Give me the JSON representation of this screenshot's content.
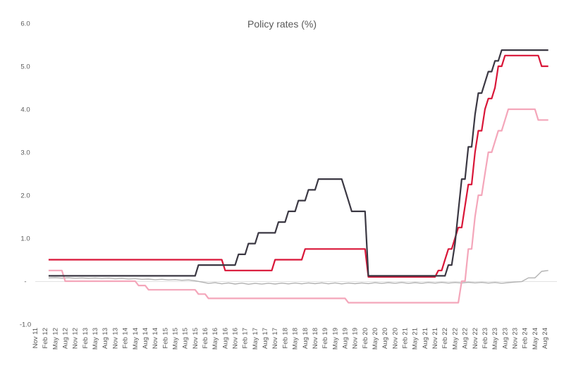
{
  "chart_data": {
    "type": "line",
    "title": "Policy rates (%)",
    "legend": "none",
    "grid": "zero-line-only",
    "background_color": "#ffffff",
    "axis_text_color": "#595959",
    "zero_line_color": "#e3e3e3",
    "x_axis": {
      "unit": "months since Nov 2011",
      "start_label": "Nov 11",
      "end_label": "Aug 24",
      "months_total": 154,
      "tick_every_months": 3,
      "tick_labels": [
        "Nov 11",
        "Feb 12",
        "May 12",
        "Aug 12",
        "Nov 12",
        "Feb 13",
        "May 13",
        "Aug 13",
        "Nov 13",
        "Feb 14",
        "May 14",
        "Aug 14",
        "Nov 14",
        "Feb 15",
        "May 15",
        "Aug 15",
        "Nov 15",
        "Feb 16",
        "May 16",
        "Aug 16",
        "Nov 16",
        "Feb 17",
        "May 17",
        "Aug 17",
        "Nov 17",
        "Feb 18",
        "May 18",
        "Aug 18",
        "Nov 18",
        "Feb 19",
        "May 19",
        "Aug 19",
        "Nov 19",
        "Feb 20",
        "May 20",
        "Aug 20",
        "Nov 20",
        "Feb 21",
        "May 21",
        "Aug 21",
        "Nov 21",
        "Feb 22",
        "May 22",
        "Aug 22",
        "Nov 22",
        "Feb 23",
        "May 23",
        "Aug 23",
        "Nov 23",
        "Feb 24",
        "May 24",
        "Aug 24"
      ]
    },
    "y_axis": {
      "min": -1.0,
      "max": 6.0,
      "tick_interval": 1.0,
      "ticks": [
        {
          "value": 6,
          "label": "6.0"
        },
        {
          "value": 5,
          "label": "5.0"
        },
        {
          "value": 4,
          "label": "4.0"
        },
        {
          "value": 3,
          "label": "3.0"
        },
        {
          "value": 2,
          "label": "2.0"
        },
        {
          "value": 1,
          "label": "1.0"
        },
        {
          "value": 0,
          "label": "-"
        },
        {
          "value": -1,
          "label": "-1.0"
        }
      ]
    },
    "series": [
      {
        "id": "gray-line",
        "color": "#b2b2b2",
        "stroke_width": 1.4,
        "interpolation": "linear",
        "end_month": 154,
        "points": [
          [
            4,
            0.075
          ],
          [
            6,
            0.08
          ],
          [
            8,
            0.07
          ],
          [
            10,
            0.078
          ],
          [
            12,
            0.068
          ],
          [
            14,
            0.075
          ],
          [
            16,
            0.065
          ],
          [
            18,
            0.072
          ],
          [
            20,
            0.062
          ],
          [
            22,
            0.07
          ],
          [
            24,
            0.058
          ],
          [
            26,
            0.065
          ],
          [
            28,
            0.052
          ],
          [
            30,
            0.06
          ],
          [
            32,
            0.045
          ],
          [
            34,
            0.05
          ],
          [
            36,
            0.035
          ],
          [
            38,
            0.045
          ],
          [
            40,
            0.03
          ],
          [
            42,
            0.038
          ],
          [
            44,
            0.022
          ],
          [
            46,
            0.03
          ],
          [
            48,
            0.01
          ],
          [
            50,
            -0.02
          ],
          [
            52,
            -0.05
          ],
          [
            54,
            -0.035
          ],
          [
            56,
            -0.06
          ],
          [
            58,
            -0.04
          ],
          [
            60,
            -0.065
          ],
          [
            62,
            -0.045
          ],
          [
            64,
            -0.07
          ],
          [
            66,
            -0.05
          ],
          [
            68,
            -0.068
          ],
          [
            70,
            -0.048
          ],
          [
            72,
            -0.065
          ],
          [
            74,
            -0.045
          ],
          [
            76,
            -0.062
          ],
          [
            78,
            -0.042
          ],
          [
            80,
            -0.06
          ],
          [
            82,
            -0.04
          ],
          [
            84,
            -0.058
          ],
          [
            86,
            -0.038
          ],
          [
            88,
            -0.06
          ],
          [
            90,
            -0.04
          ],
          [
            92,
            -0.062
          ],
          [
            94,
            -0.042
          ],
          [
            96,
            -0.058
          ],
          [
            98,
            -0.04
          ],
          [
            100,
            -0.055
          ],
          [
            102,
            -0.035
          ],
          [
            104,
            -0.05
          ],
          [
            106,
            -0.032
          ],
          [
            108,
            -0.048
          ],
          [
            110,
            -0.03
          ],
          [
            112,
            -0.05
          ],
          [
            114,
            -0.032
          ],
          [
            116,
            -0.048
          ],
          [
            118,
            -0.03
          ],
          [
            120,
            -0.045
          ],
          [
            122,
            -0.028
          ],
          [
            124,
            -0.045
          ],
          [
            126,
            -0.03
          ],
          [
            128,
            -0.042
          ],
          [
            130,
            -0.025
          ],
          [
            132,
            -0.04
          ],
          [
            134,
            -0.028
          ],
          [
            136,
            -0.045
          ],
          [
            138,
            -0.03
          ],
          [
            140,
            -0.048
          ],
          [
            142,
            -0.032
          ],
          [
            144,
            -0.02
          ],
          [
            146,
            -0.01
          ],
          [
            148,
            0.077
          ],
          [
            150,
            0.077
          ],
          [
            152,
            0.23
          ],
          [
            154,
            0.25
          ]
        ]
      },
      {
        "id": "pink-line",
        "color": "#f4a6ba",
        "stroke_width": 2.2,
        "interpolation": "step",
        "end_month": 154,
        "points": [
          [
            4,
            0.25
          ],
          [
            9,
            0.0
          ],
          [
            31,
            -0.1
          ],
          [
            34,
            -0.2
          ],
          [
            49,
            -0.3
          ],
          [
            52,
            -0.4
          ],
          [
            94,
            -0.5
          ],
          [
            128,
            0.0
          ],
          [
            130,
            0.75
          ],
          [
            132,
            1.5
          ],
          [
            133,
            2.0
          ],
          [
            135,
            2.5
          ],
          [
            136,
            3.0
          ],
          [
            138,
            3.25
          ],
          [
            139,
            3.5
          ],
          [
            141,
            3.75
          ],
          [
            142,
            4.0
          ],
          [
            151,
            3.75
          ]
        ]
      },
      {
        "id": "red-line",
        "color": "#d91638",
        "stroke_width": 2.2,
        "interpolation": "step",
        "end_month": 154,
        "points": [
          [
            4,
            0.5
          ],
          [
            57,
            0.25
          ],
          [
            72,
            0.5
          ],
          [
            81,
            0.75
          ],
          [
            100,
            0.1
          ],
          [
            121,
            0.25
          ],
          [
            123,
            0.5
          ],
          [
            124,
            0.75
          ],
          [
            126,
            1.0
          ],
          [
            127,
            1.25
          ],
          [
            129,
            1.75
          ],
          [
            130,
            2.25
          ],
          [
            132,
            3.0
          ],
          [
            133,
            3.5
          ],
          [
            135,
            4.0
          ],
          [
            136,
            4.25
          ],
          [
            138,
            4.5
          ],
          [
            139,
            5.0
          ],
          [
            141,
            5.25
          ],
          [
            152,
            5.0
          ]
        ]
      },
      {
        "id": "dark-line",
        "color": "#3b3843",
        "stroke_width": 2.2,
        "interpolation": "step",
        "end_month": 154,
        "points": [
          [
            4,
            0.125
          ],
          [
            49,
            0.375
          ],
          [
            61,
            0.625
          ],
          [
            64,
            0.875
          ],
          [
            67,
            1.125
          ],
          [
            73,
            1.375
          ],
          [
            76,
            1.625
          ],
          [
            79,
            1.875
          ],
          [
            82,
            2.125
          ],
          [
            85,
            2.375
          ],
          [
            93,
            2.125
          ],
          [
            94,
            1.875
          ],
          [
            95,
            1.625
          ],
          [
            100,
            0.125
          ],
          [
            124,
            0.375
          ],
          [
            126,
            0.875
          ],
          [
            127,
            1.625
          ],
          [
            128,
            2.375
          ],
          [
            130,
            3.125
          ],
          [
            132,
            3.875
          ],
          [
            133,
            4.375
          ],
          [
            135,
            4.625
          ],
          [
            136,
            4.875
          ],
          [
            138,
            5.125
          ],
          [
            140,
            5.375
          ]
        ]
      }
    ]
  }
}
